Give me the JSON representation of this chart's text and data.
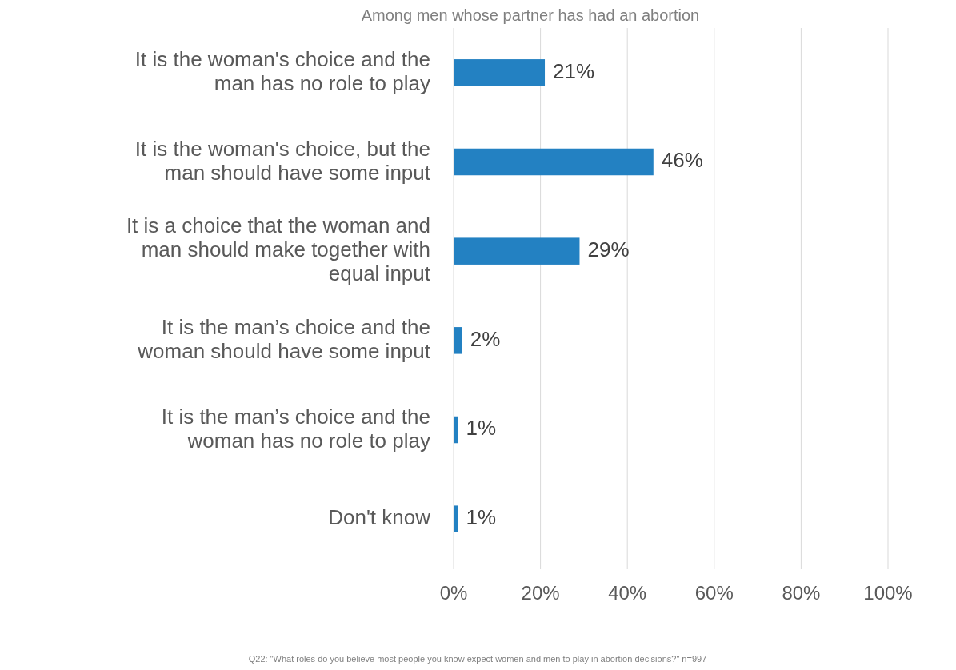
{
  "chart_data": {
    "type": "bar",
    "orientation": "horizontal",
    "title": "Among men whose partner has had an abortion",
    "categories": [
      "It is the woman's choice and the man has no role to play",
      "It is the woman's choice, but the man should have some input",
      "It is a choice that the woman and man should make together with equal input",
      "It is the man’s choice and the woman should have some input",
      "It is the man’s choice and the woman has no role to play",
      "Don't know"
    ],
    "values": [
      21,
      46,
      29,
      2,
      1,
      1
    ],
    "color": "#2381c2",
    "value_labels": [
      "21%",
      "46%",
      "29%",
      "2%",
      "1%",
      "1%"
    ],
    "xlim": [
      0,
      100
    ],
    "xticks": [
      {
        "value": 0,
        "label": "0%"
      },
      {
        "value": 20,
        "label": "20%"
      },
      {
        "value": 40,
        "label": "40%"
      },
      {
        "value": 60,
        "label": "60%"
      },
      {
        "value": 80,
        "label": "80%"
      },
      {
        "value": 100,
        "label": "100%"
      }
    ],
    "grid": "x",
    "annotations": [
      "Q22: \"What roles do you believe most people you know expect women and men to play in abortion decisions?\" n=997"
    ]
  }
}
